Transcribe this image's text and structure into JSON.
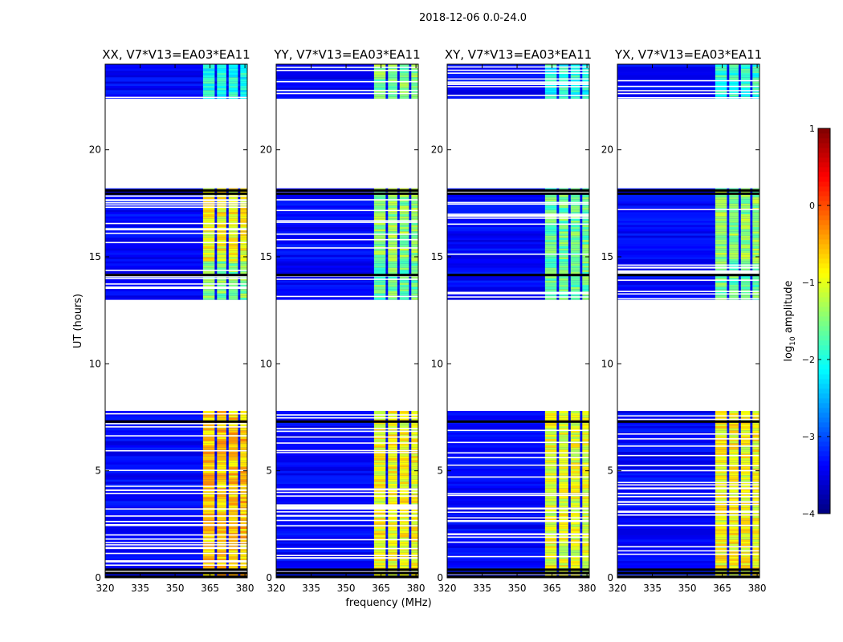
{
  "figure": {
    "suptitle": "2018-12-06 0.0-24.0",
    "xlabel": "frequency (MHz)",
    "ylabel": "UT (hours)"
  },
  "colors": {
    "background": "#ffffff",
    "blank": "#ffffff",
    "flagged": "#000000",
    "colormap": [
      "#00007f",
      "#0000ff",
      "#007fff",
      "#00ffff",
      "#7fff7f",
      "#ffff00",
      "#ff7f00",
      "#ff0000",
      "#7f0000"
    ]
  },
  "colorbar": {
    "label_main": "log",
    "label_sub": "10",
    "label_rest": " amplitude",
    "ticks": [
      {
        "label": "1",
        "value": 1
      },
      {
        "label": "0",
        "value": 0
      },
      {
        "label": "−1",
        "value": -1
      },
      {
        "label": "−2",
        "value": -2
      },
      {
        "label": "−3",
        "value": -3
      },
      {
        "label": "−4",
        "value": -4
      }
    ]
  },
  "chart_data": {
    "type": "heatmap",
    "colorscale": "jet",
    "value_range": [
      -4,
      1
    ],
    "xlim": [
      320,
      381
    ],
    "ylim": [
      0,
      24
    ],
    "x_ticks": [
      {
        "label": "320",
        "value": 320
      },
      {
        "label": "335",
        "value": 335
      },
      {
        "label": "350",
        "value": 350
      },
      {
        "label": "365",
        "value": 365
      },
      {
        "label": "380",
        "value": 380
      }
    ],
    "y_ticks": [
      {
        "label": "0",
        "value": 0
      },
      {
        "label": "5",
        "value": 5
      },
      {
        "label": "10",
        "value": 10
      },
      {
        "label": "15",
        "value": 15
      },
      {
        "label": "20",
        "value": 20
      }
    ],
    "y_tick_label_panels": [
      true,
      true,
      true,
      true
    ],
    "blank_ut_gaps": [
      [
        7.8,
        12.95
      ],
      [
        14.8,
        14.85
      ],
      [
        18.25,
        22.4
      ]
    ],
    "flagged_ut_rows": [
      0.05,
      0.22,
      0.38,
      7.3,
      14.15,
      17.95,
      18.1
    ],
    "band_channels_mhz": [
      [
        362,
        367
      ],
      [
        368,
        372
      ],
      [
        373,
        377
      ],
      [
        378,
        381
      ]
    ],
    "panels": [
      {
        "title": "XX, V7*V13=EA03*EA11",
        "band_log_amp": {
          "early": -0.6,
          "middle": -1.5,
          "late": -0.9,
          "top": -2.0
        }
      },
      {
        "title": "YY, V7*V13=EA03*EA11",
        "band_log_amp": {
          "early": -0.9,
          "middle": -1.6,
          "late": -1.4,
          "top": -1.5
        }
      },
      {
        "title": "XY, V7*V13=EA03*EA11",
        "band_log_amp": {
          "early": -1.0,
          "middle": -1.6,
          "late": -1.6,
          "top": -2.0
        }
      },
      {
        "title": "YX, V7*V13=EA03*EA11",
        "band_log_amp": {
          "early": -0.9,
          "middle": -1.6,
          "late": -1.4,
          "top": -1.9
        }
      }
    ]
  }
}
